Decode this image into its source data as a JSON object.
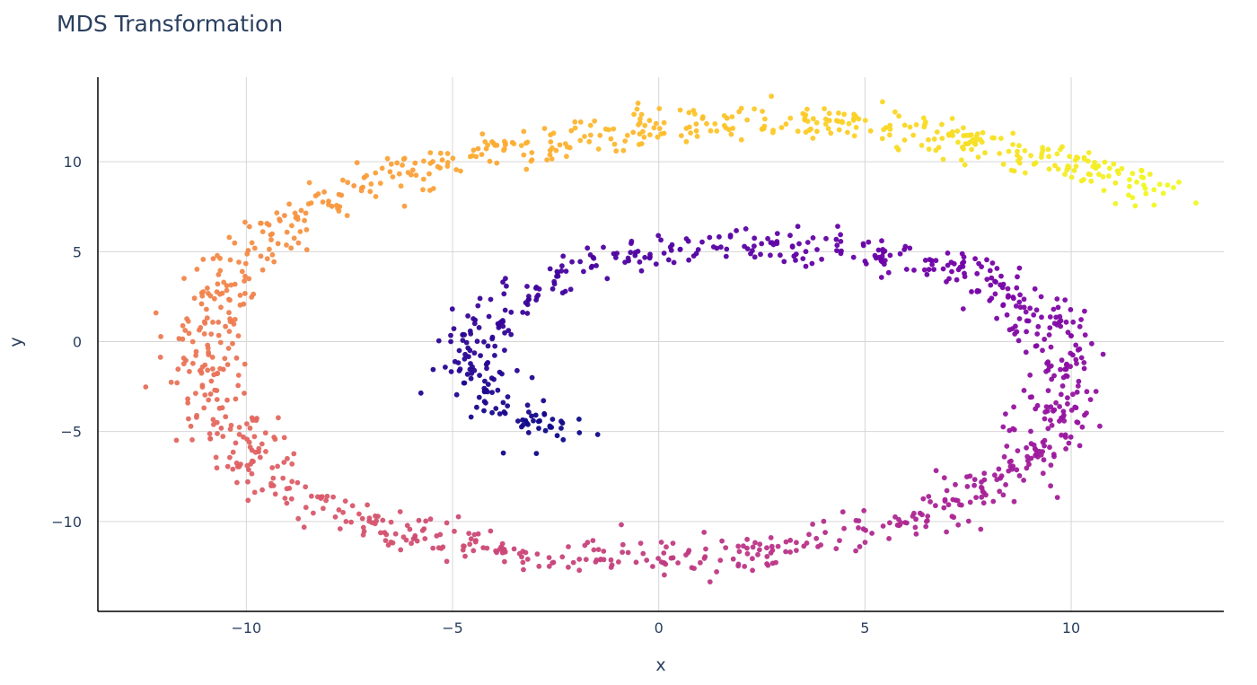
{
  "chart_data": {
    "type": "scatter",
    "title": "MDS Transformation",
    "xlabel": "x",
    "ylabel": "y",
    "xlim": [
      -13.6,
      13.7
    ],
    "ylim": [
      -15,
      14.7
    ],
    "x_ticks": [
      -10,
      -5,
      0,
      5,
      10
    ],
    "y_ticks": [
      -10,
      -5,
      0,
      5,
      10
    ],
    "x_tick_labels": [
      "−10",
      "−5",
      "0",
      "5",
      "10"
    ],
    "y_tick_labels": [
      "−10",
      "−5",
      "0",
      "5",
      "10"
    ],
    "grid": true,
    "legend": "none",
    "colorscale": "plasma",
    "colorscale_stops": [
      "#0d0887",
      "#46039f",
      "#7201a8",
      "#9c179e",
      "#bd3786",
      "#d8576b",
      "#ed7953",
      "#fb9f3a",
      "#fdca26",
      "#f0f921"
    ],
    "point_color_order": "along the spiral, from the inner end (dark blue) to the outer end (yellow)",
    "spiral_path_anchors": [
      {
        "x": -2.2,
        "y": -5.1
      },
      {
        "x": -3.3,
        "y": -4.4
      },
      {
        "x": -4.2,
        "y": -3.0
      },
      {
        "x": -4.5,
        "y": -1.0
      },
      {
        "x": -4.2,
        "y": 1.0
      },
      {
        "x": -3.2,
        "y": 3.0
      },
      {
        "x": -1.8,
        "y": 4.3
      },
      {
        "x": 0.0,
        "y": 5.2
      },
      {
        "x": 2.5,
        "y": 5.6
      },
      {
        "x": 5.0,
        "y": 5.0
      },
      {
        "x": 7.5,
        "y": 3.8
      },
      {
        "x": 9.2,
        "y": 1.5
      },
      {
        "x": 9.8,
        "y": -1.5
      },
      {
        "x": 9.6,
        "y": -4.5
      },
      {
        "x": 8.5,
        "y": -7.5
      },
      {
        "x": 6.5,
        "y": -9.8
      },
      {
        "x": 3.5,
        "y": -11.5
      },
      {
        "x": 0.0,
        "y": -12.2
      },
      {
        "x": -3.5,
        "y": -11.7
      },
      {
        "x": -6.5,
        "y": -10.5
      },
      {
        "x": -8.8,
        "y": -8.5
      },
      {
        "x": -10.3,
        "y": -5.5
      },
      {
        "x": -11.0,
        "y": -2.0
      },
      {
        "x": -11.0,
        "y": 1.5
      },
      {
        "x": -10.2,
        "y": 4.5
      },
      {
        "x": -8.5,
        "y": 7.5
      },
      {
        "x": -6.0,
        "y": 9.5
      },
      {
        "x": -3.0,
        "y": 11.0
      },
      {
        "x": 0.0,
        "y": 12.0
      },
      {
        "x": 3.0,
        "y": 12.2
      },
      {
        "x": 6.0,
        "y": 11.8
      },
      {
        "x": 9.0,
        "y": 10.5
      },
      {
        "x": 11.0,
        "y": 9.3
      },
      {
        "x": 12.4,
        "y": 8.1
      }
    ],
    "approx_point_count": 1500,
    "point_scatter_sd": 0.5
  }
}
